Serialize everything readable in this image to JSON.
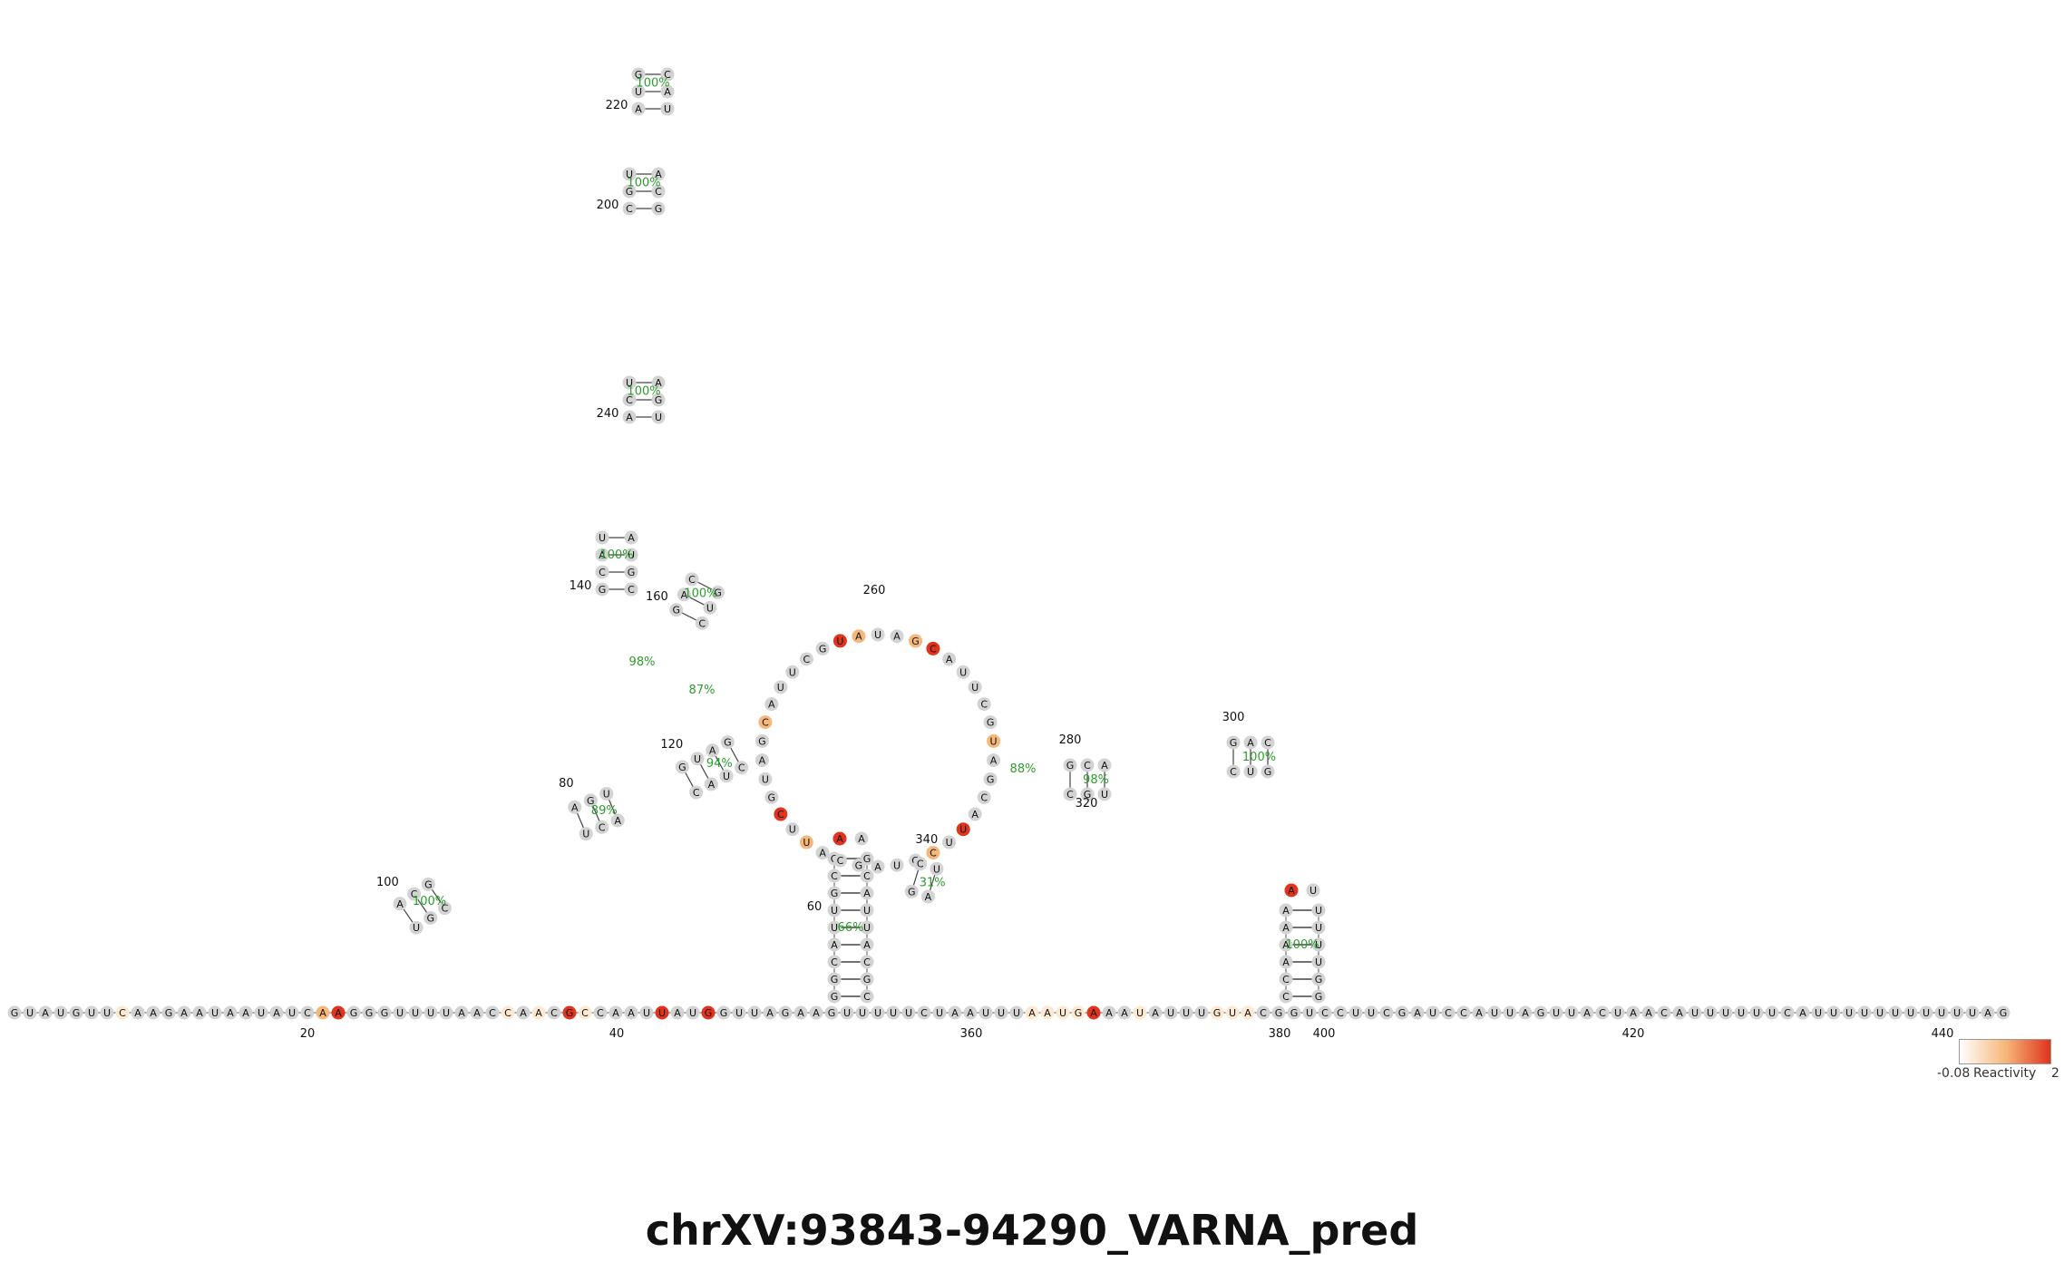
{
  "title": "chrXV:93843-94290_VARNA_pred",
  "colors": {
    "low": "#d3d3d3",
    "weak": "#fde8d2",
    "medium": "#f6b87a",
    "high": "#e0341c",
    "backbone": "#555555",
    "support": "#2e9c2e",
    "text": "#111111"
  },
  "legend": {
    "label": "Reactivity",
    "min": "-0.08",
    "max": "2",
    "gradient": [
      "#ffffff",
      "#f6b87a",
      "#e0341c"
    ]
  },
  "baseline": {
    "left_seq": "GUAUGUUCAAGAAUAAUAUCAAGGGUUUUAACCAACGCCAAUUAUGGUUAGAAG",
    "left_react": "000000010000000000002300000000001010310000300300000000",
    "middle_seq": "UUUUUCUAAUUUAAUGAAAUAUUUGUAC",
    "middle_react": "0000000000001111300100001110",
    "right_seq": "GGUCCUUCGAUCCAUUAGUUACUAACAUUUUUUCAUUUUUUUUUUUAG",
    "right_react": "000000000000000000000000000000000000000000000000",
    "tick_labels": [
      "20",
      "40",
      "360",
      "380",
      "400",
      "420",
      "440"
    ]
  },
  "stem_left_hairpin": {
    "five_prime": "GGCAUUGCG",
    "three_prime": "CGCAUUACG",
    "loop": "AA",
    "support": "66%",
    "label": "60"
  },
  "stem_right_hairpin": {
    "five_prime": "CCAAAA",
    "three_prime": "GGUUUU",
    "loop": "AU",
    "support": "100%"
  },
  "multiloop_domains": [
    {
      "name": "arm-120",
      "pairs": [
        "GC",
        "UA",
        "AU",
        "GC"
      ],
      "support": "94%",
      "label": "120"
    },
    {
      "name": "arm-80",
      "pairs": [
        "AU",
        "GC",
        "UA"
      ],
      "support": "89%",
      "label": "80"
    },
    {
      "name": "arm-100",
      "pairs": [
        "AU",
        "CG",
        "GC"
      ],
      "support": "100%",
      "label": "100"
    },
    {
      "name": "arm-140",
      "pairs": [
        "GC",
        "CG",
        "AU",
        "UA"
      ],
      "support": "100%",
      "label": "140"
    },
    {
      "name": "arm-160",
      "pairs": [
        "GC",
        "AU",
        "CG"
      ],
      "support": "100%",
      "label": "160"
    },
    {
      "name": "arm-200",
      "pairs": [
        "CG",
        "GC",
        "UA"
      ],
      "support": "100%",
      "label": "200"
    },
    {
      "name": "arm-220",
      "pairs": [
        "AU",
        "UA",
        "GC"
      ],
      "support": "100%",
      "label": "220"
    },
    {
      "name": "arm-240",
      "pairs": [
        "AU",
        "CG",
        "UA"
      ],
      "support": "100%",
      "label": "240"
    },
    {
      "name": "arm-280",
      "pairs": [
        "GC",
        "CG",
        "AU"
      ],
      "support": "98%",
      "label": "280"
    },
    {
      "name": "arm-300",
      "pairs": [
        "GC",
        "AU",
        "CG"
      ],
      "support": "100%",
      "label": "300"
    },
    {
      "name": "arm-340",
      "pairs": [
        "CG",
        "UA"
      ],
      "support": "31%",
      "label": "340"
    }
  ],
  "extra_labels": [
    "260",
    "320",
    "87%",
    "88%",
    "98%"
  ]
}
